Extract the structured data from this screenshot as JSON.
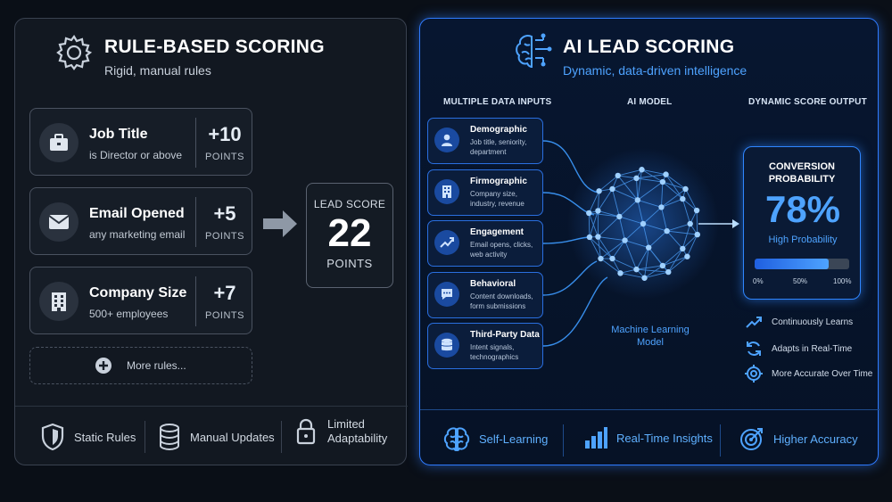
{
  "left": {
    "title": "RULE-BASED SCORING",
    "subtitle": "Rigid, manual rules",
    "header_icon": "gear-icon",
    "rules": [
      {
        "title": "Job Title",
        "desc": "is Director or above",
        "points": "+10",
        "points_label": "POINTS",
        "icon": "briefcase-icon"
      },
      {
        "title": "Email Opened",
        "desc": "any marketing email",
        "points": "+5",
        "points_label": "POINTS",
        "icon": "envelope-icon"
      },
      {
        "title": "Company Size",
        "desc": "500+ employees",
        "points": "+7",
        "points_label": "POINTS",
        "icon": "building-icon"
      }
    ],
    "more_rules": "More rules...",
    "lead_score": {
      "label": "LEAD SCORE",
      "value": "22",
      "unit": "POINTS"
    },
    "footer": [
      {
        "label": "Static Rules",
        "icon": "shield-icon"
      },
      {
        "label": "Manual Updates",
        "icon": "database-icon"
      },
      {
        "label": "Limited Adaptability",
        "icon": "lock-icon"
      }
    ]
  },
  "right": {
    "title": "AI LEAD SCORING",
    "subtitle": "Dynamic, data-driven intelligence",
    "header_icon": "brain-circuit-icon",
    "columns": {
      "inputs": "MULTIPLE DATA INPUTS",
      "model": "AI MODEL",
      "output": "DYNAMIC SCORE OUTPUT"
    },
    "inputs": [
      {
        "title": "Demographic",
        "desc": "Job title, seniority, department",
        "icon": "person-icon"
      },
      {
        "title": "Firmographic",
        "desc": "Company size, industry, revenue",
        "icon": "office-building-icon"
      },
      {
        "title": "Engagement",
        "desc": "Email opens, clicks, web activity",
        "icon": "trend-up-icon"
      },
      {
        "title": "Behavioral",
        "desc": "Content downloads, form submissions",
        "icon": "chat-icon"
      },
      {
        "title": "Third-Party Data",
        "desc": "Intent signals, technographics",
        "icon": "database-icon"
      }
    ],
    "model_label": "Machine Learning Model",
    "output": {
      "title": "CONVERSION PROBABILITY",
      "value": "78%",
      "caption": "High Probability",
      "progress": 0.78,
      "ticks": [
        "0%",
        "50%",
        "100%"
      ]
    },
    "features": [
      {
        "label": "Continuously Learns",
        "icon": "trend-up-icon"
      },
      {
        "label": "Adapts in Real-Time",
        "icon": "refresh-icon"
      },
      {
        "label": "More Accurate Over Time",
        "icon": "target-icon"
      }
    ],
    "footer": [
      {
        "label": "Self-Learning",
        "icon": "brain-icon"
      },
      {
        "label": "Real-Time Insights",
        "icon": "bar-chart-icon"
      },
      {
        "label": "Higher Accuracy",
        "icon": "bullseye-icon"
      }
    ]
  },
  "colors": {
    "accent": "#2f7bff",
    "accent_light": "#4ea3ff",
    "panel_border": "#3a4250"
  }
}
